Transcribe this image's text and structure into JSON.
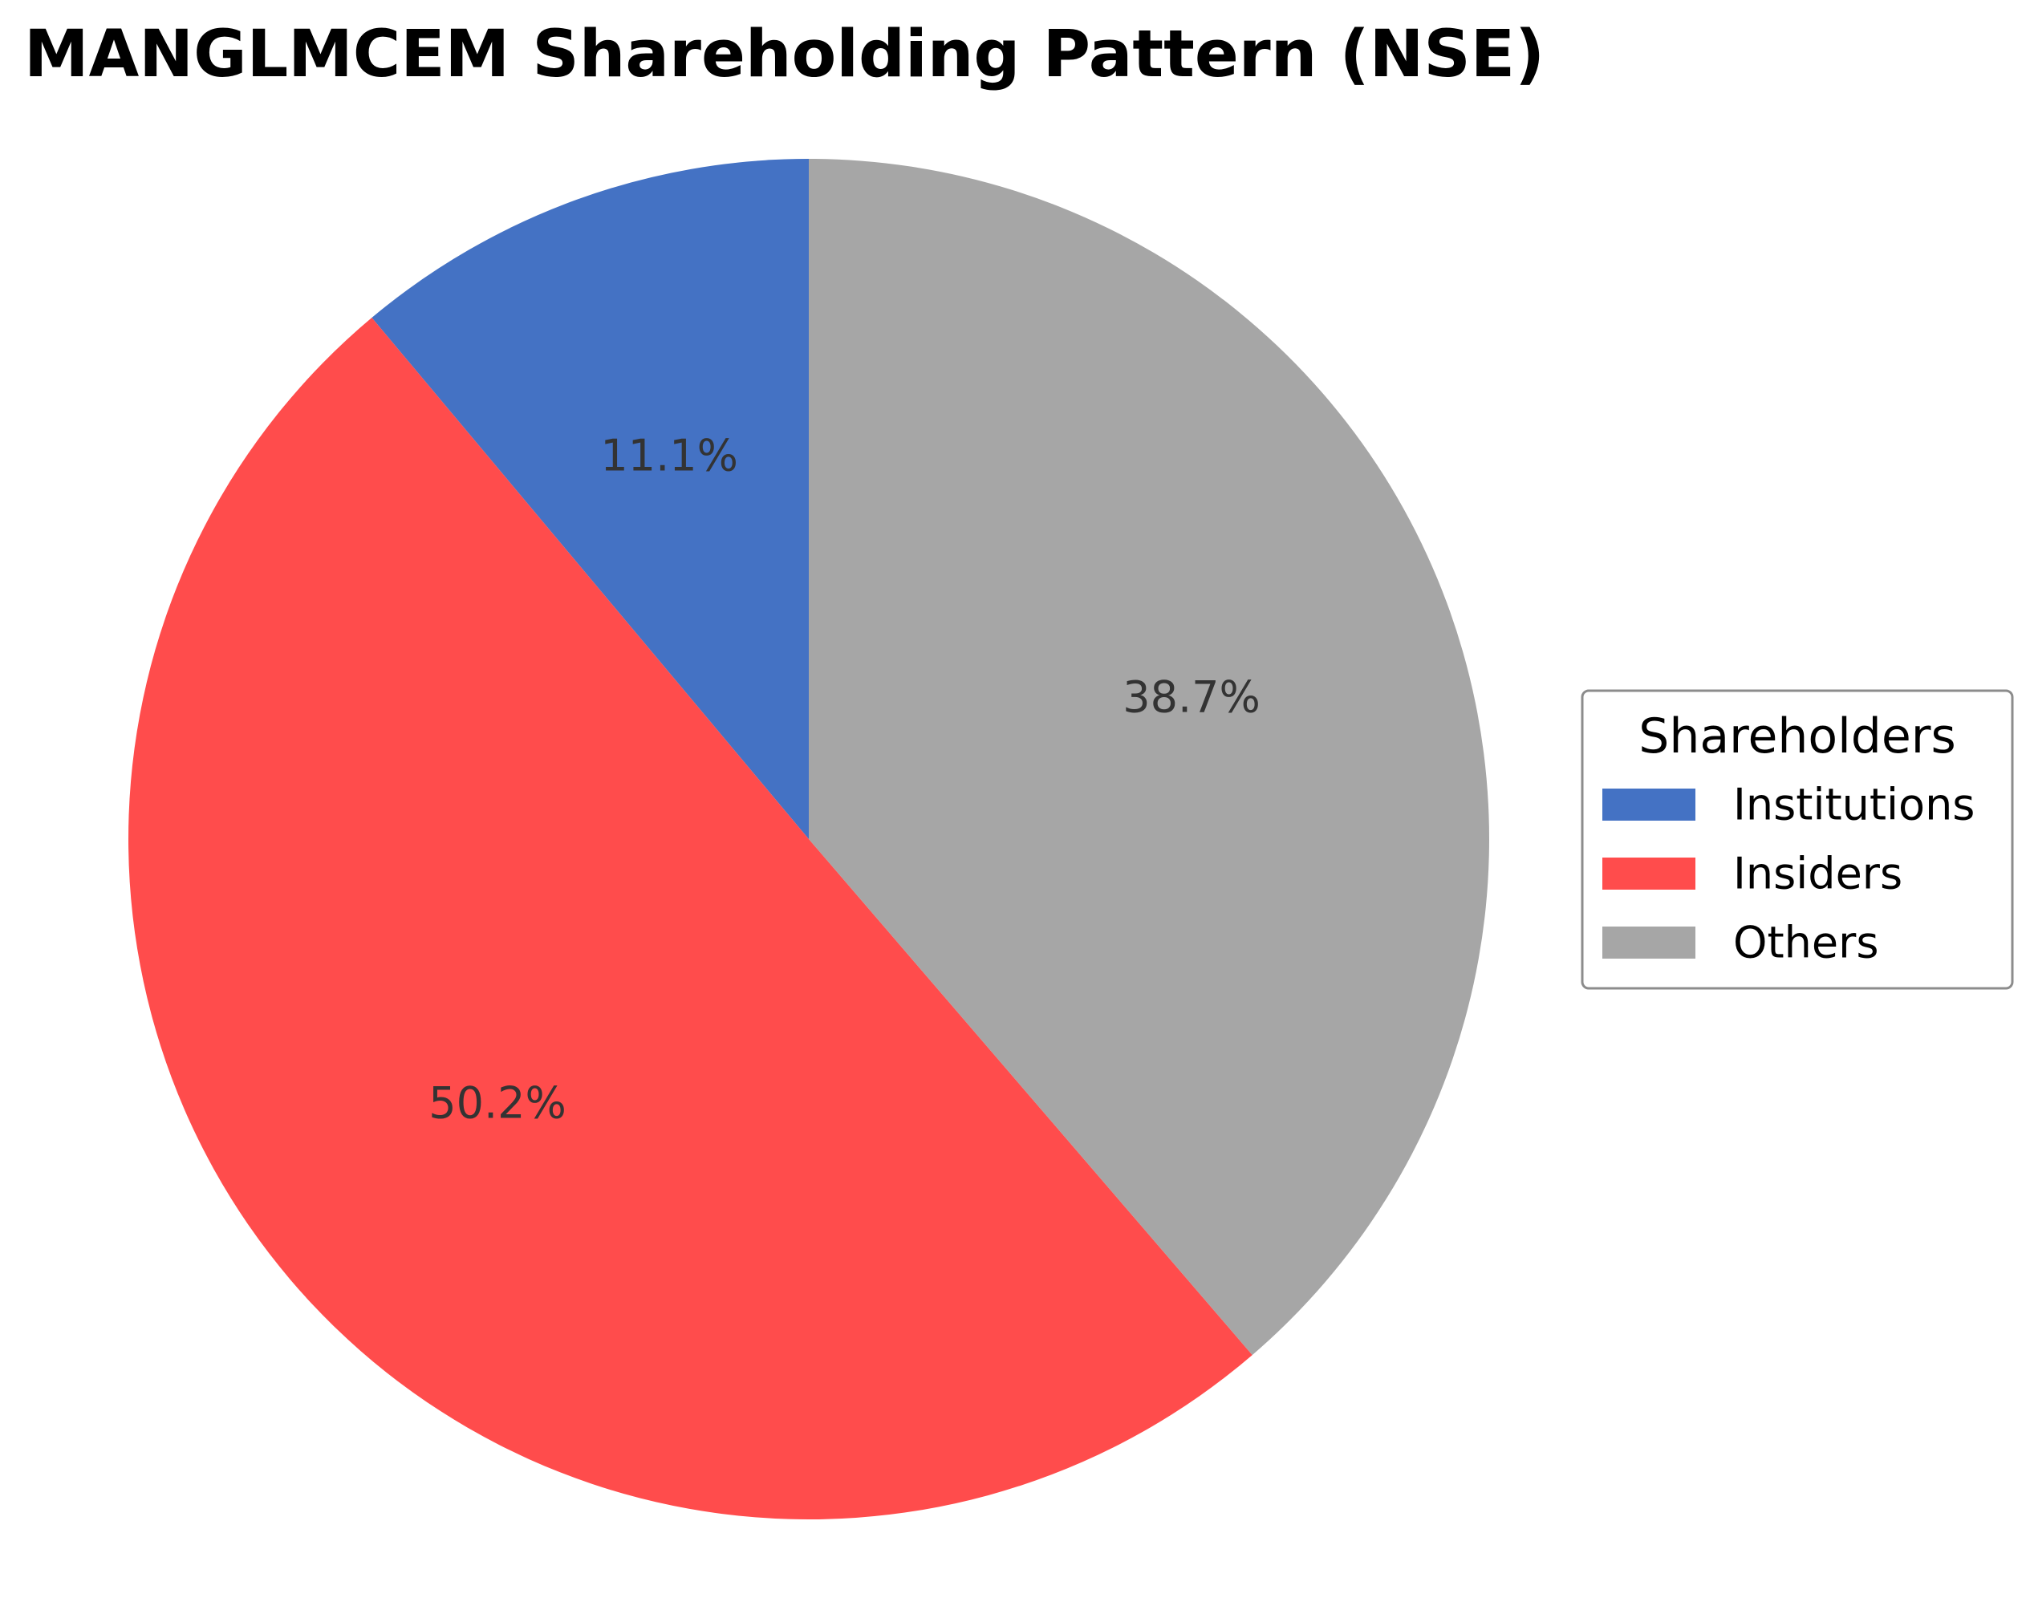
{
  "chart_data": {
    "type": "pie",
    "title": "MANGLMCEM Shareholding Pattern (NSE)",
    "legend_title": "Shareholders",
    "legend_position": "right",
    "start_angle_deg": 90,
    "direction": "counterclockwise",
    "slices": [
      {
        "label": "Institutions",
        "value": 11.1,
        "display": "11.1%",
        "color": "#4472C4"
      },
      {
        "label": "Insiders",
        "value": 50.2,
        "display": "50.2%",
        "color": "#FF4C4C"
      },
      {
        "label": "Others",
        "value": 38.7,
        "display": "38.7%",
        "color": "#A6A6A6"
      }
    ]
  }
}
